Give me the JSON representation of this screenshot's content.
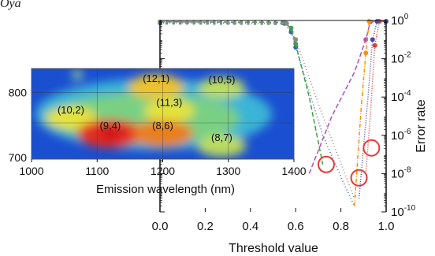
{
  "top_fragment": "Oya",
  "chart_data": [
    {
      "type": "line",
      "xlabel": "Threshold value",
      "ylabel": "Error rate",
      "x_ticks": [
        "0.0",
        "0.2",
        "0.4",
        "0.6",
        "0.8",
        "1.0"
      ],
      "xlim": [
        0.0,
        1.0
      ],
      "yscale": "log",
      "ylim": [
        1e-10,
        1
      ],
      "y_ticks": [
        {
          "value": 1,
          "base": "10",
          "exp": "0"
        },
        {
          "value": 0.01,
          "base": "10",
          "exp": "-2"
        },
        {
          "value": 0.0001,
          "base": "10",
          "exp": "-4"
        },
        {
          "value": 1e-06,
          "base": "10",
          "exp": "-6"
        },
        {
          "value": 1e-08,
          "base": "10",
          "exp": "-8"
        },
        {
          "value": 1e-10,
          "base": "10",
          "exp": "-10"
        }
      ],
      "y_axis_side": "right",
      "legend": "none",
      "series": [
        {
          "color": "#3d5fb0",
          "dash": "1,3",
          "points": [
            [
              0.0,
              0.75
            ],
            [
              0.55,
              0.7
            ],
            [
              0.58,
              0.25
            ],
            [
              0.6,
              0.04
            ],
            [
              0.72,
              1e-06
            ],
            [
              0.82,
              2e-09
            ],
            [
              0.86,
              2e-10
            ]
          ]
        },
        {
          "color": "#43a047",
          "dash": "6,3",
          "points": [
            [
              0.0,
              0.85
            ],
            [
              0.55,
              0.8
            ],
            [
              0.58,
              0.4
            ],
            [
              0.6,
              0.06
            ],
            [
              0.66,
              0.0001
            ],
            [
              0.72,
              3e-08
            ]
          ]
        },
        {
          "color": "#8a8a8a",
          "dash": "1,3",
          "points": [
            [
              0.0,
              0.8
            ],
            [
              0.56,
              0.7
            ],
            [
              0.6,
              0.1
            ],
            [
              0.72,
              1e-05
            ],
            [
              0.86,
              5e-10
            ]
          ]
        },
        {
          "color": "#b04fc2",
          "dash": "6,3",
          "points": [
            [
              0.66,
              1e-08
            ],
            [
              0.76,
              1e-05
            ],
            [
              0.86,
              0.002
            ],
            [
              0.91,
              0.1
            ],
            [
              0.93,
              0.85
            ],
            [
              1.0,
              0.9
            ]
          ]
        },
        {
          "color": "#ff9000",
          "dash": "5,2,1,2",
          "points": [
            [
              0.86,
              2e-10
            ],
            [
              0.89,
              3e-05
            ],
            [
              0.91,
              0.02
            ],
            [
              0.925,
              0.9
            ],
            [
              1.0,
              0.9
            ]
          ]
        },
        {
          "color": "#e53935",
          "dash": "1,2",
          "points": [
            [
              0.91,
              1e-08
            ],
            [
              0.93,
              1e-05
            ],
            [
              0.95,
              0.05
            ],
            [
              0.97,
              0.9
            ],
            [
              1.0,
              0.9
            ]
          ]
        },
        {
          "color": "#4a4aa8",
          "dash": "1,2",
          "points": [
            [
              0.88,
              5e-10
            ],
            [
              0.92,
              0.0001
            ],
            [
              0.94,
              0.1
            ],
            [
              0.96,
              0.9
            ],
            [
              1.0,
              0.9
            ]
          ]
        }
      ],
      "annotations": [
        {
          "type": "circle",
          "x": 0.735,
          "y": 3e-08,
          "color": "#e53935"
        },
        {
          "type": "circle",
          "x": 0.88,
          "y": 6e-09,
          "color": "#e53935"
        },
        {
          "type": "circle",
          "x": 0.935,
          "y": 2.2e-07,
          "color": "#e53935"
        }
      ]
    },
    {
      "type": "heatmap",
      "xlabel": "Emission wavelength (nm)",
      "x_ticks": [
        "1000",
        "1100",
        "1200",
        "1300",
        "1400"
      ],
      "xlim": [
        1000,
        1400
      ],
      "y_ticks": [
        "800",
        "700"
      ],
      "ylim": [
        690,
        840
      ],
      "colormap": "jet",
      "peaks": [
        {
          "label": "(10,2)",
          "x": 1060,
          "y": 758,
          "intensity": 0.6
        },
        {
          "label": "(9,4)",
          "x": 1120,
          "y": 732,
          "intensity": 1.0
        },
        {
          "label": "(12,1)",
          "x": 1190,
          "y": 810,
          "intensity": 0.7
        },
        {
          "label": "(10,5)",
          "x": 1290,
          "y": 808,
          "intensity": 0.45
        },
        {
          "label": "(11,3)",
          "x": 1210,
          "y": 770,
          "intensity": 0.55
        },
        {
          "label": "(8,6)",
          "x": 1200,
          "y": 732,
          "intensity": 0.85
        },
        {
          "label": "(8,7)",
          "x": 1290,
          "y": 712,
          "intensity": 0.5
        }
      ]
    }
  ]
}
